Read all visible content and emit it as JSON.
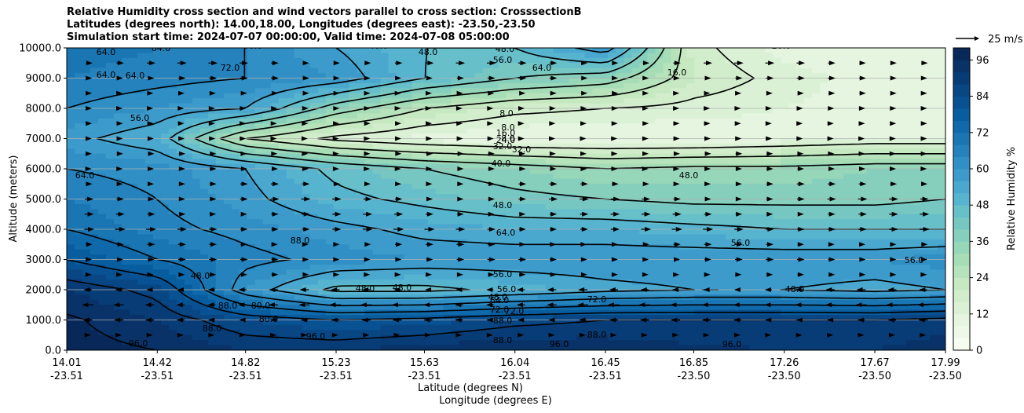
{
  "chart_data": {
    "type": "heatmap",
    "title_lines": [
      "Relative Humidity cross section and wind vectors parallel to cross section: CrosssectionB",
      "Latitudes (degrees north): 14.00,18.00, Longitudes (degrees east): -23.50,-23.50",
      "Simulation start time: 2024-07-07 00:00:00, Valid time: 2024-07-08 05:00:00"
    ],
    "ylabel": "Altitude (meters)",
    "xlabel_lat": "Latitude (degrees N)",
    "xlabel_lon": "Longitude (degrees E)",
    "ylim": [
      0,
      10000
    ],
    "y_ticks": [
      "0.0",
      "1000.0",
      "2000.0",
      "3000.0",
      "4000.0",
      "5000.0",
      "6000.0",
      "7000.0",
      "8000.0",
      "9000.0",
      "10000.0"
    ],
    "x_ticks": [
      {
        "lat": "14.01",
        "lon": "-23.51"
      },
      {
        "lat": "14.42",
        "lon": "-23.51"
      },
      {
        "lat": "14.82",
        "lon": "-23.51"
      },
      {
        "lat": "15.23",
        "lon": "-23.51"
      },
      {
        "lat": "15.63",
        "lon": "-23.51"
      },
      {
        "lat": "16.04",
        "lon": "-23.51"
      },
      {
        "lat": "16.45",
        "lon": "-23.51"
      },
      {
        "lat": "16.85",
        "lon": "-23.50"
      },
      {
        "lat": "17.26",
        "lon": "-23.50"
      },
      {
        "lat": "17.67",
        "lon": "-23.50"
      },
      {
        "lat": "17.99",
        "lon": "-23.50"
      }
    ],
    "colorbar": {
      "label": "Relative Humidity %",
      "min": 0,
      "max": 100,
      "step": 4,
      "tick_labels": [
        "0",
        "12",
        "24",
        "36",
        "48",
        "60",
        "72",
        "84",
        "96"
      ],
      "colors": [
        "#f7fcf0",
        "#eef8e8",
        "#e5f5e0",
        "#dbf1d5",
        "#d1edcb",
        "#c6e9c1",
        "#b6e3bb",
        "#a6ddb6",
        "#96d6b9",
        "#86cfbd",
        "#76c7c2",
        "#67bfc9",
        "#57b4cf",
        "#4aa8cf",
        "#3d9bcb",
        "#308fc4",
        "#2582bc",
        "#1a76b3",
        "#0f69aa",
        "#085d9f",
        "#085192",
        "#084684",
        "#083c76",
        "#083268",
        "#08285a"
      ]
    },
    "wind_key": {
      "label": "25 m/s"
    },
    "grid": true,
    "rh_field": {
      "x": [
        14.01,
        14.42,
        14.82,
        15.23,
        15.63,
        16.04,
        16.45,
        16.85,
        17.26,
        17.67,
        17.99
      ],
      "y": [
        0,
        1000,
        2000,
        3000,
        4000,
        5000,
        6000,
        7000,
        8000,
        9000,
        10000
      ],
      "values": [
        [
          98,
          96,
          92,
          92,
          94,
          96,
          95,
          93,
          92,
          92,
          94
        ],
        [
          97,
          92,
          84,
          80,
          82,
          86,
          88,
          88,
          88,
          88,
          90
        ],
        [
          92,
          86,
          60,
          46,
          46,
          50,
          54,
          56,
          56,
          54,
          56
        ],
        [
          80,
          72,
          66,
          62,
          60,
          60,
          60,
          60,
          60,
          60,
          62
        ],
        [
          72,
          66,
          62,
          58,
          54,
          52,
          52,
          50,
          48,
          48,
          48
        ],
        [
          68,
          64,
          58,
          50,
          46,
          42,
          40,
          38,
          38,
          38,
          40
        ],
        [
          64,
          62,
          56,
          46,
          40,
          36,
          32,
          34,
          34,
          36,
          36
        ],
        [
          58,
          52,
          24,
          14,
          10,
          8,
          8,
          8,
          10,
          12,
          12
        ],
        [
          64,
          60,
          56,
          36,
          24,
          18,
          16,
          14,
          12,
          10,
          10
        ],
        [
          68,
          66,
          64,
          60,
          48,
          40,
          36,
          20,
          14,
          10,
          10
        ],
        [
          70,
          68,
          64,
          56,
          48,
          48,
          60,
          18,
          10,
          10,
          12
        ]
      ]
    },
    "contour_labels": [
      "64.0",
      "64.0",
      "56.0",
      "40.0",
      "48.0",
      "56.0",
      "64.0",
      "48.0",
      "20.0",
      "64.0",
      "64.0",
      "72.0",
      "16.0",
      "56.0",
      "8.0",
      "8.0",
      "8.0",
      "16.0",
      "24.0",
      "32.0",
      "32.0",
      "40.0",
      "48.0",
      "64.0",
      "48.0",
      "64.0",
      "88.0",
      "56.0",
      "56.0",
      "56.0",
      "48.0",
      "48.0",
      "48.0",
      "48.0",
      "56.0",
      "64.0",
      "72.0",
      "72.0",
      "80.0",
      "88.0",
      "88.0",
      "88.0",
      "96.0",
      "96.0",
      "96.0",
      "96.0",
      "88.0",
      "80.0",
      "88.0",
      "72.0",
      "48.0"
    ],
    "wind_vectors": {
      "description": "wind parallel to cross section",
      "levels_m": [
        500,
        1000,
        1500,
        2000,
        2500,
        3000,
        3500,
        4000,
        4500,
        5000,
        5500,
        6000,
        6500,
        7000,
        7500,
        8000,
        8500,
        9000,
        9500
      ],
      "u_ms": [
        1,
        -6,
        -8,
        -6,
        4,
        5,
        5,
        7,
        6,
        6,
        5,
        4,
        4,
        3,
        3,
        3,
        4,
        5,
        6
      ]
    }
  }
}
